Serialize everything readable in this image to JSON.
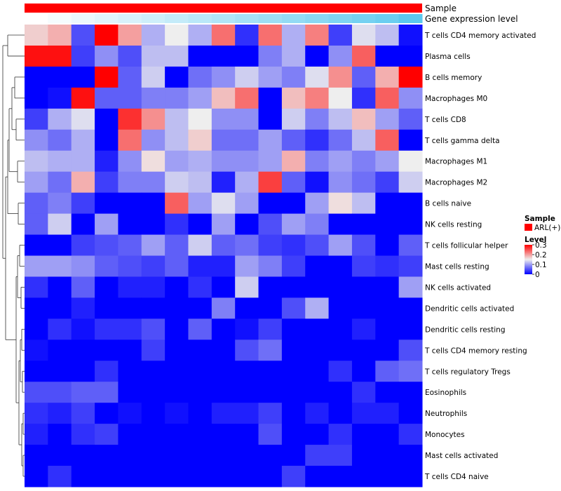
{
  "chart_data": {
    "type": "heatmap",
    "annotations": {
      "sample_label": "Sample",
      "expression_label": "Gene expression level",
      "sample_color": "#ff0000",
      "expression_colors": [
        "#ffffff",
        "#5bc8ee"
      ]
    },
    "rows": [
      "T cells CD4 memory activated",
      "Plasma cells",
      "B cells memory",
      "Macrophages M0",
      "T cells CD8",
      "T cells gamma delta",
      "Macrophages M1",
      "Macrophages M2",
      "B cells naive",
      "NK cells resting",
      "T cells follicular helper",
      "Mast cells resting",
      "NK cells activated",
      "Dendritic cells activated",
      "Dendritic cells resting",
      "T cells CD4 memory resting",
      "T cells regulatory  Tregs",
      "Eosinophils",
      "Neutrophils",
      "Monocytes",
      "Mast cells activated",
      "T cells CD4 naive"
    ],
    "values": [
      [
        0.17,
        0.19,
        0.05,
        0.3,
        0.2,
        0.11,
        0.15,
        0.11,
        0.23,
        0.03,
        0.23,
        0.11,
        0.22,
        0.04,
        0.14,
        0.12,
        0.01
      ],
      [
        0.29,
        0.29,
        0.04,
        0.09,
        0.05,
        0.12,
        0.12,
        0.0,
        0.0,
        0.0,
        0.08,
        0.11,
        0.0,
        0.09,
        0.24,
        0.0,
        0.0
      ],
      [
        0.0,
        0.0,
        0.0,
        0.3,
        0.06,
        0.13,
        0.0,
        0.07,
        0.09,
        0.13,
        0.1,
        0.08,
        0.14,
        0.21,
        0.06,
        0.19,
        0.3
      ],
      [
        0.0,
        0.01,
        0.29,
        0.06,
        0.06,
        0.08,
        0.08,
        0.1,
        0.18,
        0.23,
        0.0,
        0.18,
        0.22,
        0.15,
        0.03,
        0.24,
        0.09
      ],
      [
        0.04,
        0.11,
        0.14,
        0.0,
        0.27,
        0.21,
        0.12,
        0.15,
        0.09,
        0.09,
        0.0,
        0.13,
        0.08,
        0.12,
        0.18,
        0.1,
        0.06
      ],
      [
        0.09,
        0.07,
        0.11,
        0.0,
        0.23,
        0.09,
        0.12,
        0.17,
        0.07,
        0.07,
        0.1,
        0.06,
        0.03,
        0.07,
        0.12,
        0.24,
        0.0
      ],
      [
        0.12,
        0.11,
        0.11,
        0.02,
        0.09,
        0.16,
        0.1,
        0.11,
        0.09,
        0.09,
        0.1,
        0.19,
        0.08,
        0.1,
        0.08,
        0.1,
        0.15
      ],
      [
        0.1,
        0.07,
        0.19,
        0.04,
        0.08,
        0.08,
        0.13,
        0.12,
        0.02,
        0.11,
        0.26,
        0.06,
        0.01,
        0.09,
        0.07,
        0.04,
        0.13
      ],
      [
        0.06,
        0.08,
        0.04,
        0.0,
        0.0,
        0.0,
        0.24,
        0.1,
        0.14,
        0.1,
        0.0,
        0.0,
        0.1,
        0.16,
        0.12,
        0.0,
        0.0
      ],
      [
        0.06,
        0.13,
        0.0,
        0.1,
        0.0,
        0.0,
        0.03,
        0.0,
        0.1,
        0.0,
        0.05,
        0.1,
        0.08,
        0.0,
        0.0,
        0.0,
        0.0
      ],
      [
        0.0,
        0.0,
        0.04,
        0.05,
        0.06,
        0.1,
        0.06,
        0.13,
        0.06,
        0.07,
        0.04,
        0.03,
        0.05,
        0.1,
        0.05,
        0.0,
        0.06
      ],
      [
        0.1,
        0.1,
        0.09,
        0.06,
        0.05,
        0.04,
        0.06,
        0.02,
        0.02,
        0.1,
        0.08,
        0.04,
        0.0,
        0.0,
        0.04,
        0.03,
        0.04
      ],
      [
        0.03,
        0.0,
        0.06,
        0.0,
        0.02,
        0.02,
        0.0,
        0.03,
        0.0,
        0.13,
        0.0,
        0.0,
        0.0,
        0.0,
        0.0,
        0.0,
        0.1
      ],
      [
        0.0,
        0.0,
        0.02,
        0.0,
        0.0,
        0.0,
        0.0,
        0.0,
        0.08,
        0.0,
        0.0,
        0.05,
        0.11,
        0.0,
        0.0,
        0.0,
        0.0
      ],
      [
        0.0,
        0.03,
        0.01,
        0.03,
        0.03,
        0.05,
        0.0,
        0.06,
        0.0,
        0.01,
        0.04,
        0.0,
        0.0,
        0.0,
        0.02,
        0.0,
        0.0
      ],
      [
        0.01,
        0.0,
        0.0,
        0.0,
        0.0,
        0.04,
        0.0,
        0.0,
        0.0,
        0.05,
        0.07,
        0.0,
        0.0,
        0.0,
        0.0,
        0.0,
        0.05
      ],
      [
        0.0,
        0.0,
        0.0,
        0.03,
        0.0,
        0.0,
        0.0,
        0.0,
        0.0,
        0.0,
        0.0,
        0.0,
        0.0,
        0.03,
        0.0,
        0.06,
        0.07
      ],
      [
        0.05,
        0.05,
        0.06,
        0.06,
        0.0,
        0.0,
        0.0,
        0.0,
        0.0,
        0.0,
        0.0,
        0.0,
        0.0,
        0.0,
        0.03,
        0.0,
        0.0
      ],
      [
        0.03,
        0.02,
        0.04,
        0.0,
        0.01,
        0.0,
        0.01,
        0.0,
        0.02,
        0.02,
        0.04,
        0.0,
        0.02,
        0.0,
        0.02,
        0.02,
        0.0
      ],
      [
        0.02,
        0.0,
        0.03,
        0.04,
        0.0,
        0.0,
        0.0,
        0.0,
        0.0,
        0.0,
        0.05,
        0.0,
        0.0,
        0.03,
        0.0,
        0.0,
        0.03
      ],
      [
        0.0,
        0.0,
        0.0,
        0.0,
        0.0,
        0.0,
        0.0,
        0.0,
        0.0,
        0.0,
        0.0,
        0.0,
        0.04,
        0.04,
        0.0,
        0.0,
        0.0
      ],
      [
        0.0,
        0.03,
        0.0,
        0.0,
        0.0,
        0.0,
        0.0,
        0.0,
        0.0,
        0.0,
        0.0,
        0.04,
        0.0,
        0.0,
        0.0,
        0.0,
        0.0
      ]
    ],
    "expression_levels": [
      0.0,
      0.06,
      0.12,
      0.18,
      0.24,
      0.3,
      0.36,
      0.42,
      0.48,
      0.54,
      0.6,
      0.66,
      0.72,
      0.78,
      0.84,
      0.9,
      1.0
    ],
    "color_scale": {
      "min": 0,
      "max": 0.3,
      "stops": [
        {
          "value": 0,
          "color": "#0000ff"
        },
        {
          "value": 0.15,
          "color": "#eeeeee"
        },
        {
          "value": 0.3,
          "color": "#ff0000"
        }
      ]
    },
    "legend": {
      "sample_title": "Sample",
      "sample_entry": "ARL(+)",
      "level_title": "Level",
      "ticks": [
        {
          "value": 0.3,
          "label": "0.3"
        },
        {
          "value": 0.2,
          "label": "0.2"
        },
        {
          "value": 0.1,
          "label": "0.1"
        },
        {
          "value": 0,
          "label": "0"
        }
      ]
    }
  }
}
